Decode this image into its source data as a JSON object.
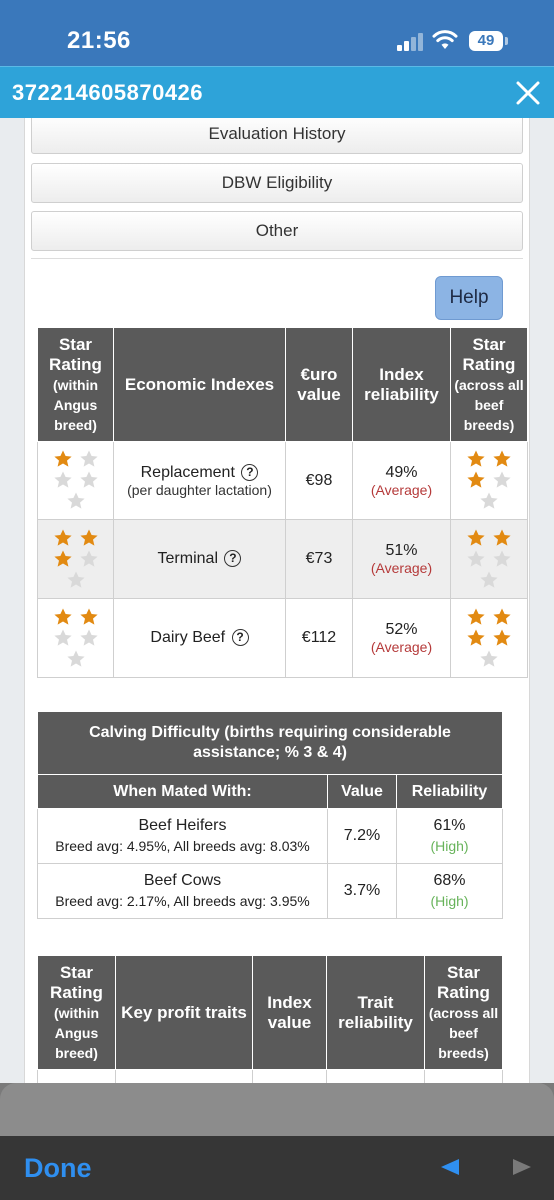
{
  "status": {
    "time": "21:56",
    "battery": "49"
  },
  "titlebar": {
    "title": "372214605870426"
  },
  "tabs": [
    {
      "label": "Evaluation History"
    },
    {
      "label": "DBW Eligibility"
    },
    {
      "label": "Other"
    }
  ],
  "help_label": "Help",
  "economic": {
    "headers": {
      "star_within": "Star Rating",
      "star_within_sub": "(within Angus breed)",
      "index": "Economic Indexes",
      "value": "€uro value",
      "reliability": "Index reliability",
      "star_across": "Star Rating",
      "star_across_sub": "(across all beef breeds)"
    },
    "rows": [
      {
        "name": "Replacement",
        "sub": "(per daughter lactation)",
        "value": "€98",
        "reliability": "49%",
        "rel_label": "(Average)",
        "stars_within": 1,
        "stars_across": 3
      },
      {
        "name": "Terminal",
        "sub": "",
        "value": "€73",
        "reliability": "51%",
        "rel_label": "(Average)",
        "stars_within": 3,
        "stars_across": 2
      },
      {
        "name": "Dairy Beef",
        "sub": "",
        "value": "€112",
        "reliability": "52%",
        "rel_label": "(Average)",
        "stars_within": 2,
        "stars_across": 4
      }
    ]
  },
  "calving": {
    "title": "Calving Difficulty (births requiring considerable assistance; % 3 & 4)",
    "headers": {
      "mated": "When Mated With:",
      "value": "Value",
      "reliability": "Reliability"
    },
    "rows": [
      {
        "name": "Beef Heifers",
        "avg": "Breed avg: 4.95%, All breeds avg: 8.03%",
        "value": "7.2%",
        "reliability": "61%",
        "rel_label": "(High)"
      },
      {
        "name": "Beef Cows",
        "avg": "Breed avg: 2.17%, All breeds avg: 3.95%",
        "value": "3.7%",
        "reliability": "68%",
        "rel_label": "(High)"
      }
    ]
  },
  "profit": {
    "headers": {
      "star_within": "Star Rating",
      "star_within_sub": "(within Angus breed)",
      "traits": "Key profit traits",
      "value": "Index value",
      "reliability": "Trait reliability",
      "star_across": "Star Rating",
      "star_across_sub": "(across all beef breeds)"
    }
  },
  "toolbar": {
    "done": "Done"
  },
  "colors": {
    "star_filled": "#e28a12",
    "star_empty": "#d9d9d9",
    "status_bg": "#3a78bb",
    "title_bg": "#2ea3d9"
  }
}
